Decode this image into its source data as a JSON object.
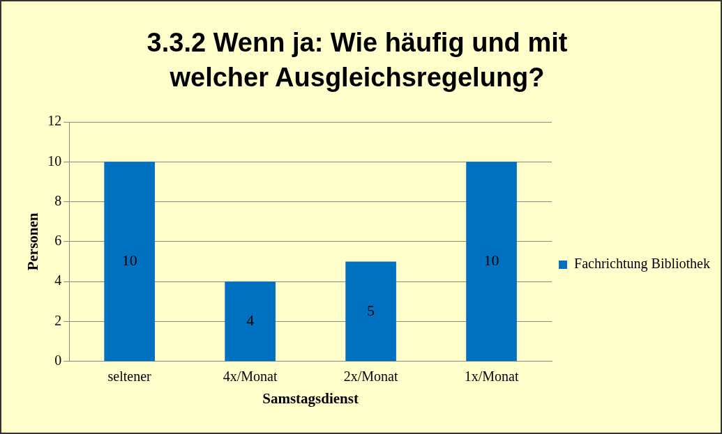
{
  "chart_data": {
    "type": "bar",
    "title": "3.3.2 Wenn ja: Wie häufig und mit welcher Ausgleichsregelung?",
    "xlabel": "Samstagsdienst",
    "ylabel": "Personen",
    "categories": [
      "seltener",
      "4x/Monat",
      "2x/Monat",
      "1x/Monat"
    ],
    "series": [
      {
        "name": "Fachrichtung Bibliothek",
        "color": "#0070c0",
        "values": [
          10,
          4,
          5,
          10
        ]
      }
    ],
    "ylim": [
      0,
      12
    ],
    "yticks": [
      0,
      2,
      4,
      6,
      8,
      10,
      12
    ],
    "grid": "y",
    "legend": "right",
    "data_labels": true
  }
}
